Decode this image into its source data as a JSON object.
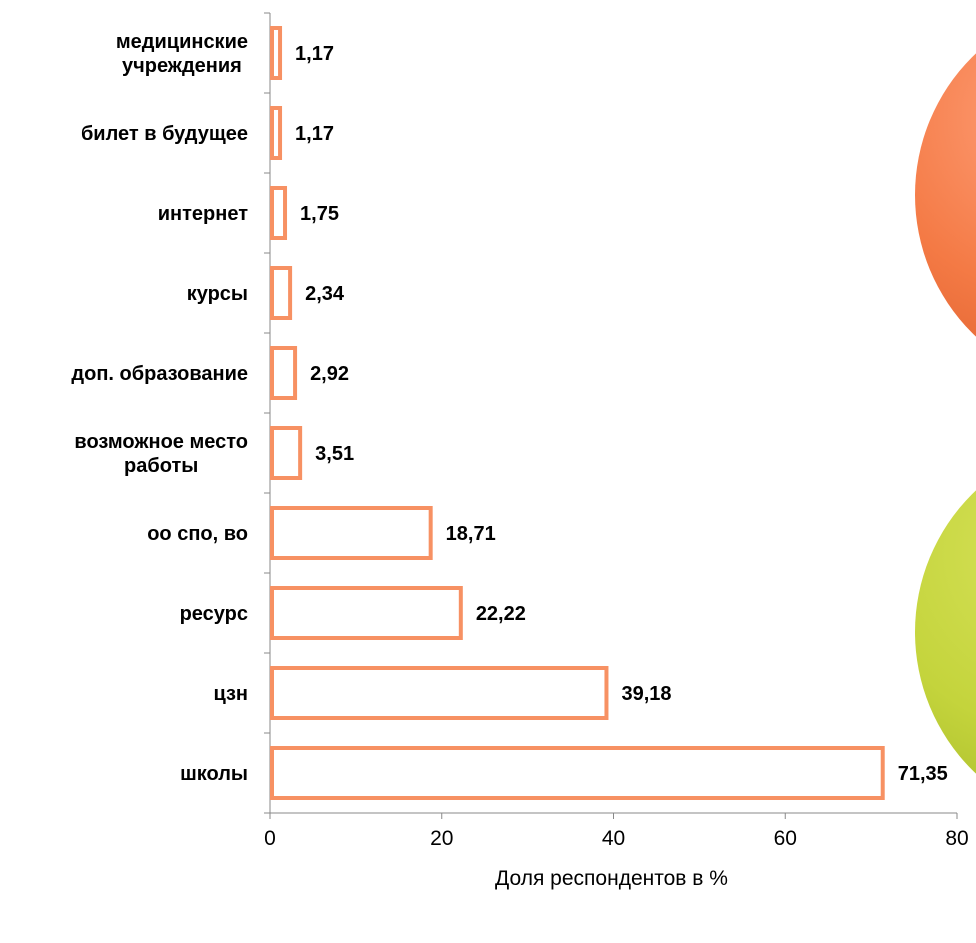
{
  "chart_data": {
    "type": "bar",
    "orientation": "horizontal",
    "categories": [
      [
        "медицинские",
        "учреждения"
      ],
      [
        "билет в будущее"
      ],
      [
        "интернет"
      ],
      [
        "курсы"
      ],
      [
        "доп. образование"
      ],
      [
        "возможное место",
        "работы"
      ],
      [
        "оо спо, во"
      ],
      [
        "ресурс"
      ],
      [
        "цзн"
      ],
      [
        "школы"
      ]
    ],
    "values": [
      1.17,
      1.17,
      1.75,
      2.34,
      2.92,
      3.51,
      18.71,
      22.22,
      39.18,
      71.35
    ],
    "data_labels": [
      "1,17",
      "1,17",
      "1,75",
      "2,34",
      "2,92",
      "3,51",
      "18,71",
      "22,22",
      "39,18",
      "71,35"
    ],
    "xlabel": "Доля респондентов в %",
    "xlim": [
      0,
      80
    ],
    "xticks": [
      0,
      20,
      40,
      60,
      80
    ],
    "grid": false,
    "colors": {
      "bar_stroke": "#F79163",
      "bar_fill": "#FFFFFF",
      "axis": "#888888",
      "text": "#000000",
      "decor_orange": "#F47A45",
      "decor_green": "#BFD23A"
    }
  }
}
